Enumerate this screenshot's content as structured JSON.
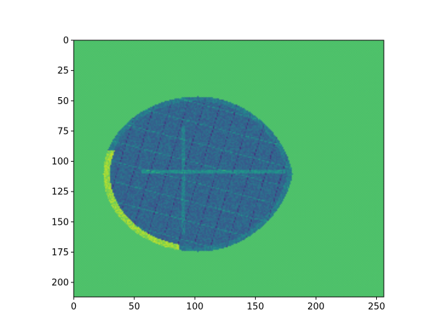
{
  "chart_data": {
    "type": "heatmap",
    "title": "",
    "xlabel": "",
    "ylabel": "",
    "colormap": "viridis",
    "image_width": 256,
    "image_height": 212,
    "xlim": [
      0,
      256
    ],
    "ylim": [
      212,
      0
    ],
    "x_ticks": [
      0,
      50,
      100,
      150,
      200,
      250
    ],
    "x_tick_labels": [
      "0",
      "50",
      "100",
      "150",
      "200",
      "250"
    ],
    "y_ticks": [
      0,
      25,
      50,
      75,
      100,
      125,
      150,
      175,
      200
    ],
    "y_tick_labels": [
      "0",
      "25",
      "50",
      "75",
      "100",
      "125",
      "150",
      "175",
      "200"
    ],
    "grid": false,
    "background_level": 0.72,
    "object": {
      "center": [
        102,
        110
      ],
      "radius_x": 78,
      "radius_y": 64,
      "mean_level": 0.33,
      "rim_level": 0.92
    },
    "colors": {
      "background_green": "#4cbf6a",
      "interior_teal": "#2a7b8e",
      "dark_structure": "#3b3f8a",
      "rim_yellow": "#d4e22c"
    }
  }
}
